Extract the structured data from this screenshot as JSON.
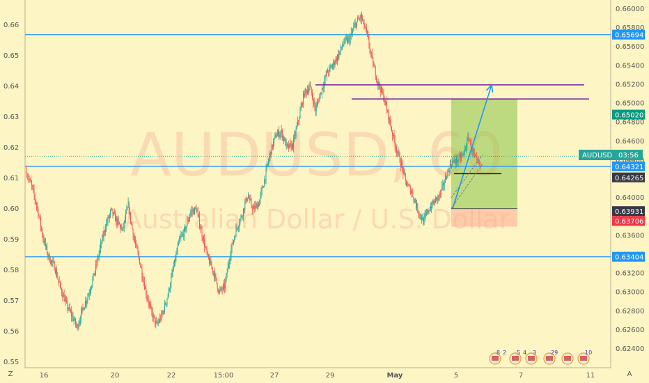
{
  "watermark": {
    "symbol": "AUDUSD, 60",
    "description": "Australian Dollar / U.S. Dollar"
  },
  "toolbar": {
    "left_label": "Z",
    "right_label": "A"
  },
  "ticker_tag": {
    "symbol": "AUDUSD",
    "timer": "03:56"
  },
  "colors": {
    "background": "#fdf5c3",
    "bull": "#26a69a",
    "bear": "#ef5350",
    "hline": "#2196f3",
    "purple": "#7b1fa2",
    "target": "#8bc34a",
    "stop": "#ffab91",
    "tag_blue": "#2196f3",
    "tag_green": "#089981",
    "tag_red": "#f23645",
    "tag_dark": "#363a45",
    "tag_teal": "#26a69a"
  },
  "chart_data": {
    "type": "candlestick",
    "title": "AUDUSD, 60",
    "subtitle": "Australian Dollar / U.S. Dollar",
    "x_ticks": [
      "16",
      "20",
      "22",
      "15:00",
      "27",
      "29",
      "May",
      "5",
      "7",
      "11"
    ],
    "left_axis": {
      "ticks": [
        "0.66",
        "0.65",
        "0.64",
        "0.63",
        "0.62",
        "0.61",
        "0.60",
        "0.59",
        "0.58",
        "0.57",
        "0.56",
        "0.55"
      ],
      "range": [
        0.548,
        0.668
      ]
    },
    "right_axis": {
      "ticks": [
        "0.66000",
        "0.65800",
        "0.65600",
        "0.65400",
        "0.65200",
        "0.65000",
        "0.64800",
        "0.64600",
        "0.64400",
        "0.64200",
        "0.64000",
        "0.63800",
        "0.63600",
        "0.63400",
        "0.63200",
        "0.63000",
        "0.62800",
        "0.62600",
        "0.62400"
      ]
    },
    "price_tags": [
      {
        "label": "0.65694",
        "style": "blue",
        "y": 0.6567
      },
      {
        "label": "0.65020",
        "style": "green",
        "y": 0.6306
      },
      {
        "label": "0.64321",
        "style": "blue",
        "y": 0.6137
      },
      {
        "label": "0.64265",
        "style": "dark",
        "y": 0.6101
      },
      {
        "label": "0.63931",
        "style": "dark",
        "y": 0.5991
      },
      {
        "label": "0.63706",
        "style": "red",
        "y": 0.5959
      },
      {
        "label": "0.63404",
        "style": "blue",
        "y": 0.5842
      }
    ],
    "horizontal_lines": [
      0.6567,
      0.6137,
      0.5842
    ],
    "current_price": 0.617,
    "resistance_segments": [
      {
        "y": 0.6357,
        "x_from": "29",
        "x_to": "11"
      },
      {
        "y": 0.6403,
        "x_from": "29",
        "x_to": "11"
      }
    ],
    "position": {
      "entry": 0.5999,
      "target": 0.6357,
      "stop": 0.594
    },
    "projection": {
      "from": 0.5999,
      "to": 0.6403
    },
    "entry_marker": 0.6113,
    "price_path": [
      0.6123,
      0.6071,
      0.6,
      0.5903,
      0.584,
      0.581,
      0.5745,
      0.569,
      0.5652,
      0.5612,
      0.5673,
      0.572,
      0.5785,
      0.5866,
      0.5942,
      0.5992,
      0.5957,
      0.5929,
      0.6008,
      0.5903,
      0.5827,
      0.5736,
      0.5664,
      0.5618,
      0.5653,
      0.5717,
      0.5808,
      0.5895,
      0.5928,
      0.5988,
      0.5997,
      0.5916,
      0.5838,
      0.5795,
      0.5726,
      0.5745,
      0.5856,
      0.593,
      0.5977,
      0.6042,
      0.5995,
      0.6016,
      0.6093,
      0.6179,
      0.6239,
      0.6248,
      0.6197,
      0.6207,
      0.6289,
      0.6375,
      0.6397,
      0.6321,
      0.6383,
      0.6441,
      0.6467,
      0.6499,
      0.6542,
      0.6552,
      0.66,
      0.6626,
      0.6572,
      0.648,
      0.641,
      0.6364,
      0.6289,
      0.621,
      0.615,
      0.608,
      0.6052,
      0.5996,
      0.5957,
      0.5998,
      0.6023,
      0.6046,
      0.6105,
      0.615,
      0.6158,
      0.6173,
      0.6232,
      0.6165,
      0.6135
    ],
    "legend_badges": [
      "8",
      "2",
      "5",
      "4",
      "3",
      "29",
      "10"
    ]
  }
}
